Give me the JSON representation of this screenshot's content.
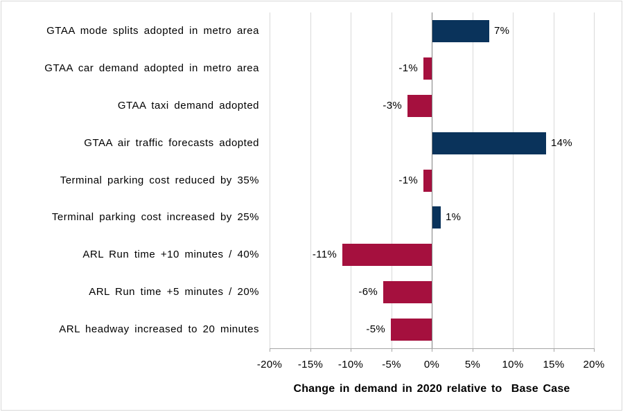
{
  "figure": {
    "background": "#ffffff",
    "border_color": "#d8d8d8"
  },
  "chart_data": {
    "type": "bar",
    "orientation": "horizontal",
    "title": "",
    "xlabel": "Change in demand in 2020 relative to  Base Case",
    "ylabel": "",
    "xlim": [
      -20,
      20
    ],
    "grid": true,
    "legend": "none",
    "categories": [
      "GTAA mode splits adopted in metro area",
      "GTAA car demand adopted in metro area",
      "GTAA taxi demand adopted",
      "GTAA air traffic forecasts adopted",
      "Terminal parking cost reduced by 35%",
      "Terminal parking cost increased by 25%",
      "ARL Run time +10 minutes / 40%",
      "ARL Run time +5 minutes / 20%",
      "ARL headway increased to 20 minutes"
    ],
    "values": [
      7,
      -1,
      -3,
      14,
      -1,
      1,
      -11,
      -6,
      -5
    ],
    "bar_labels": [
      "7%",
      "-1%",
      "-3%",
      "14%",
      "-1%",
      "1%",
      "-11%",
      "-6%",
      "-5%"
    ],
    "x_ticks": [
      -20,
      -15,
      -10,
      -5,
      0,
      5,
      10,
      15,
      20
    ],
    "x_tick_labels": [
      "-20%",
      "-15%",
      "-10%",
      "-5%",
      "0%",
      "5%",
      "10%",
      "15%",
      "20%"
    ],
    "positive_color": "#0a335b",
    "negative_color": "#a5103e",
    "gridline_color": "#d9d9d9",
    "zero_line_color": "#808080",
    "axis_line_color": "#a6a6a6",
    "text_color": "#000000"
  }
}
